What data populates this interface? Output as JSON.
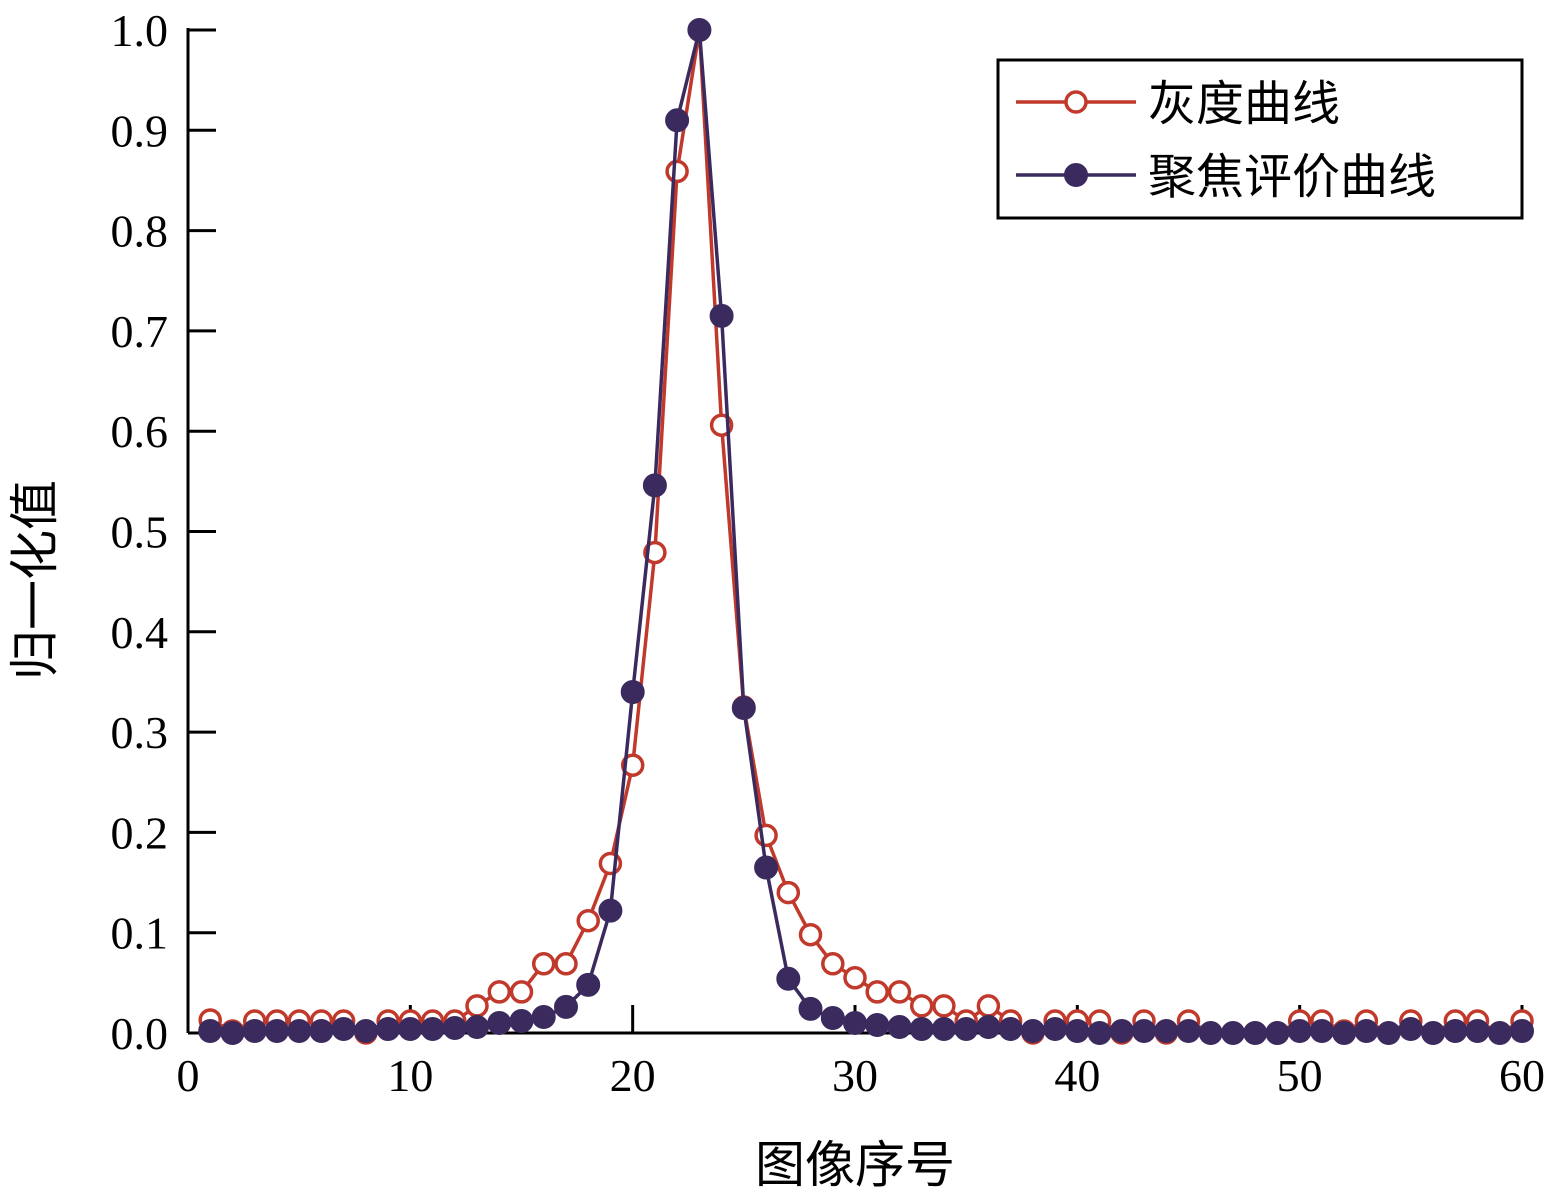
{
  "chart_data": {
    "type": "line",
    "title": "",
    "xlabel": "图像序号",
    "ylabel": "归一化值",
    "xlim": [
      0,
      60
    ],
    "ylim": [
      0,
      1.0
    ],
    "xticks": [
      "0",
      "10",
      "20",
      "30",
      "40",
      "50",
      "60"
    ],
    "yticks": [
      "0.0",
      "0.1",
      "0.2",
      "0.3",
      "0.4",
      "0.5",
      "0.6",
      "0.7",
      "0.8",
      "0.9",
      "1.0"
    ],
    "grid": false,
    "legend_position": "top-right",
    "x": [
      1,
      2,
      3,
      4,
      5,
      6,
      7,
      8,
      9,
      10,
      11,
      12,
      13,
      14,
      15,
      16,
      17,
      18,
      19,
      20,
      21,
      22,
      23,
      24,
      25,
      26,
      27,
      28,
      29,
      30,
      31,
      32,
      33,
      34,
      35,
      36,
      37,
      38,
      39,
      40,
      41,
      42,
      43,
      44,
      45,
      46,
      47,
      48,
      49,
      50,
      51,
      52,
      53,
      54,
      55,
      56,
      57,
      58,
      59,
      60
    ],
    "series": [
      {
        "name": "灰度曲线",
        "color": "#c0392b",
        "marker": "open-circle",
        "values": [
          0.013,
          0.002,
          0.012,
          0.012,
          0.012,
          0.012,
          0.012,
          0.0,
          0.012,
          0.012,
          0.012,
          0.012,
          0.027,
          0.041,
          0.041,
          0.069,
          0.069,
          0.112,
          0.169,
          0.267,
          0.479,
          0.859,
          1.0,
          0.606,
          0.325,
          0.197,
          0.14,
          0.098,
          0.069,
          0.055,
          0.041,
          0.041,
          0.027,
          0.027,
          0.012,
          0.027,
          0.012,
          0.0,
          0.012,
          0.012,
          0.012,
          0.0,
          0.012,
          0.0,
          0.012,
          0.0,
          0.0,
          0.0,
          0.0,
          0.012,
          0.012,
          0.002,
          0.012,
          0.0,
          0.012,
          0.0,
          0.012,
          0.012,
          0.0,
          0.012
        ]
      },
      {
        "name": "聚焦评价曲线",
        "color": "#3b2a5e",
        "marker": "filled-circle",
        "values": [
          0.002,
          0.0,
          0.002,
          0.002,
          0.002,
          0.002,
          0.004,
          0.002,
          0.004,
          0.004,
          0.004,
          0.005,
          0.006,
          0.01,
          0.012,
          0.016,
          0.026,
          0.048,
          0.122,
          0.34,
          0.546,
          0.91,
          1.0,
          0.715,
          0.324,
          0.165,
          0.054,
          0.024,
          0.015,
          0.01,
          0.008,
          0.006,
          0.004,
          0.004,
          0.004,
          0.006,
          0.004,
          0.002,
          0.004,
          0.002,
          0.0,
          0.002,
          0.002,
          0.002,
          0.002,
          0.0,
          0.0,
          0.0,
          0.0,
          0.002,
          0.002,
          0.0,
          0.002,
          0.0,
          0.004,
          0.0,
          0.002,
          0.002,
          0.0,
          0.002
        ]
      }
    ]
  }
}
